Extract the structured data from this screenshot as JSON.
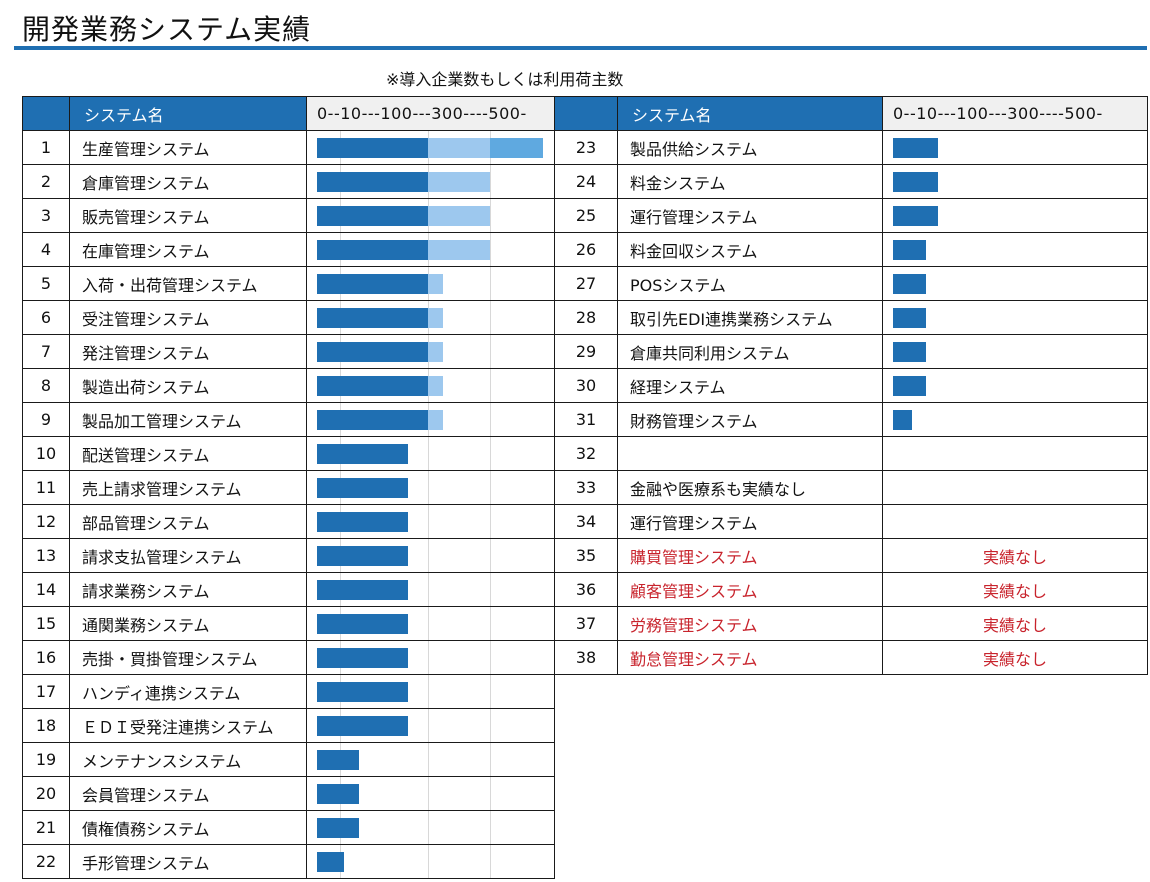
{
  "title": "開発業務システム実績",
  "note": "※導入企業数もしくは利用荷主数",
  "colors": {
    "accent": "#1f6fb2",
    "dark": "#1f6fb2",
    "light": "#9dc8ee",
    "mid": "#5fa9e0",
    "noresult": "#c8232c"
  },
  "header": {
    "name_label": "システム名",
    "scale_label": "0--10---100---300----500-"
  },
  "no_result_label": "実績なし",
  "left_rows": [
    {
      "num": "1",
      "name": "生産管理システム",
      "value": 500
    },
    {
      "num": "2",
      "name": "倉庫管理システム",
      "value": 300
    },
    {
      "num": "3",
      "name": "販売管理システム",
      "value": 300
    },
    {
      "num": "4",
      "name": "在庫管理システム",
      "value": 300
    },
    {
      "num": "5",
      "name": "入荷・出荷管理システム",
      "value": 150
    },
    {
      "num": "6",
      "name": "受注管理システム",
      "value": 150
    },
    {
      "num": "7",
      "name": "発注管理システム",
      "value": 150
    },
    {
      "num": "8",
      "name": "製造出荷システム",
      "value": 150
    },
    {
      "num": "9",
      "name": "製品加工管理システム",
      "value": 150
    },
    {
      "num": "10",
      "name": "配送管理システム",
      "value": 80
    },
    {
      "num": "11",
      "name": "売上請求管理システム",
      "value": 80
    },
    {
      "num": "12",
      "name": "部品管理システム",
      "value": 80
    },
    {
      "num": "13",
      "name": "請求支払管理システム",
      "value": 80
    },
    {
      "num": "14",
      "name": "請求業務システム",
      "value": 80
    },
    {
      "num": "15",
      "name": "通関業務システム",
      "value": 80
    },
    {
      "num": "16",
      "name": "売掛・買掛管理システム",
      "value": 80
    },
    {
      "num": "17",
      "name": "ハンディ連携システム",
      "value": 80
    },
    {
      "num": "18",
      "name": "ＥＤＩ受発注連携システム",
      "value": 80
    },
    {
      "num": "19",
      "name": "メンテナンスシステム",
      "value": 30
    },
    {
      "num": "20",
      "name": "会員管理システム",
      "value": 30
    },
    {
      "num": "21",
      "name": "債権債務システム",
      "value": 30
    },
    {
      "num": "22",
      "name": "手形管理システム",
      "value": 15
    }
  ],
  "right_rows": [
    {
      "num": "23",
      "name": "製品供給システム",
      "value": 30
    },
    {
      "num": "24",
      "name": "料金システム",
      "value": 30
    },
    {
      "num": "25",
      "name": "運行管理システム",
      "value": 30
    },
    {
      "num": "26",
      "name": "料金回収システム",
      "value": 18
    },
    {
      "num": "27",
      "name": "POSシステム",
      "value": 18
    },
    {
      "num": "28",
      "name": "取引先EDI連携業務システム",
      "value": 18
    },
    {
      "num": "29",
      "name": "倉庫共同利用システム",
      "value": 18
    },
    {
      "num": "30",
      "name": "経理システム",
      "value": 18
    },
    {
      "num": "31",
      "name": "財務管理システム",
      "value": 8
    },
    {
      "num": "32",
      "name": "",
      "value": 0
    },
    {
      "num": "33",
      "name": "金融や医療系も実績なし",
      "value": 0
    },
    {
      "num": "34",
      "name": "運行管理システム",
      "value": 0
    },
    {
      "num": "35",
      "name": "購買管理システム",
      "value": 0,
      "no_result": true
    },
    {
      "num": "36",
      "name": "顧客管理システム",
      "value": 0,
      "no_result": true
    },
    {
      "num": "37",
      "name": "労務管理システム",
      "value": 0,
      "no_result": true
    },
    {
      "num": "38",
      "name": "勤怠管理システム",
      "value": 0,
      "no_result": true
    }
  ]
}
